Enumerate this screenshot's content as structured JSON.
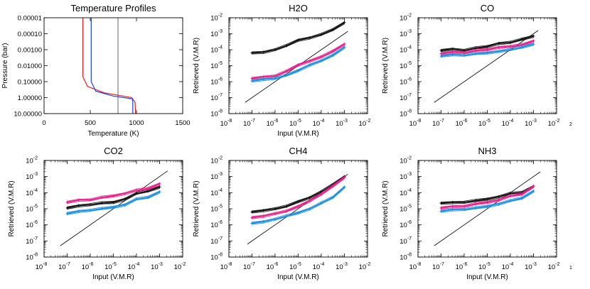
{
  "chart_data": [
    {
      "type": "line",
      "title": "Temperature Profiles",
      "xlabel": "Temperature (K)",
      "ylabel": "Pressure (bar)",
      "xlim": [
        0,
        1500
      ],
      "ylim": [
        10,
        1e-05
      ],
      "yscale": "log",
      "x_ticks": [
        "0",
        "500",
        "1000",
        "1500"
      ],
      "y_ticks": [
        "0.00001",
        "0.00010",
        "0.00100",
        "0.01000",
        "0.10000",
        "1.00000",
        "10.00000"
      ],
      "series": [
        {
          "name": "gray",
          "color": "#808080",
          "points": [
            [
              800,
              1e-05
            ],
            [
              800,
              10
            ]
          ]
        },
        {
          "name": "red",
          "color": "#e02020",
          "points": [
            [
              420,
              1e-05
            ],
            [
              420,
              0.05
            ],
            [
              470,
              0.2
            ],
            [
              650,
              0.5
            ],
            [
              950,
              1.0
            ],
            [
              985,
              2
            ],
            [
              990,
              10
            ]
          ]
        },
        {
          "name": "blue",
          "color": "#2040e0",
          "points": [
            [
              510,
              1e-05
            ],
            [
              510,
              0.1
            ],
            [
              560,
              0.4
            ],
            [
              750,
              0.8
            ],
            [
              955,
              1.2
            ],
            [
              960,
              2
            ],
            [
              960,
              10
            ]
          ]
        }
      ]
    },
    {
      "type": "line",
      "title": "H2O",
      "xlabel": "Input (V.M.R)",
      "ylabel": "Retrieved (V.M.R)",
      "xscale": "log",
      "yscale": "log",
      "xlim": [
        -8,
        -2
      ],
      "ylim": [
        -8,
        -2
      ],
      "tick_exponents": [
        -8,
        -7,
        -6,
        -5,
        -4,
        -3,
        -2
      ],
      "x": [
        -7,
        -6.5,
        -6,
        -5.5,
        -5,
        -4.5,
        -4,
        -3.5,
        -3
      ],
      "series": [
        {
          "name": "black",
          "color": "#111111",
          "y": [
            -4.2,
            -4.15,
            -4.0,
            -3.75,
            -3.4,
            -3.25,
            -3.05,
            -2.75,
            -2.3
          ]
        },
        {
          "name": "magenta",
          "color": "#e8208a",
          "y": [
            -5.8,
            -5.7,
            -5.65,
            -5.35,
            -4.95,
            -4.7,
            -4.45,
            -4.1,
            -3.65
          ]
        },
        {
          "name": "blue",
          "color": "#1e8fe0",
          "y": [
            -5.95,
            -5.85,
            -5.8,
            -5.6,
            -5.3,
            -4.95,
            -4.7,
            -4.35,
            -3.85
          ]
        }
      ],
      "reference_line": {
        "x": [
          -7.3,
          -2.85
        ],
        "y": [
          -7.3,
          -2.85
        ]
      }
    },
    {
      "type": "line",
      "title": "CO",
      "xlabel": "",
      "ylabel": "Retrieved (V.M.R)",
      "xscale": "log",
      "yscale": "log",
      "xlim": [
        -8,
        -2
      ],
      "ylim": [
        -8,
        -2
      ],
      "tick_exponents": [
        -8,
        -7,
        -6,
        -5,
        -4,
        -3,
        -2
      ],
      "x": [
        -7,
        -6.5,
        -6,
        -5.5,
        -5,
        -4.5,
        -4,
        -3.5,
        -3
      ],
      "series": [
        {
          "name": "black",
          "color": "#111111",
          "y": [
            -4.05,
            -3.95,
            -4.05,
            -3.9,
            -3.8,
            -3.6,
            -3.55,
            -3.35,
            -3.15
          ]
        },
        {
          "name": "magenta",
          "color": "#e8208a",
          "y": [
            -4.25,
            -4.15,
            -4.2,
            -4.05,
            -4.0,
            -3.85,
            -3.8,
            -3.7,
            -3.45
          ]
        },
        {
          "name": "blue",
          "color": "#1e8fe0",
          "y": [
            -4.4,
            -4.3,
            -4.35,
            -4.25,
            -4.2,
            -4.1,
            -4.0,
            -3.85,
            -3.65
          ]
        }
      ],
      "reference_line": {
        "x": [
          -7.3,
          -2.8
        ],
        "y": [
          -7.3,
          -2.8
        ]
      },
      "annotation": "2"
    },
    {
      "type": "line",
      "title": "CO2",
      "xlabel": "Input (V.M.R)",
      "ylabel": "Retrieved (V.M.R)",
      "xscale": "log",
      "yscale": "log",
      "xlim": [
        -8,
        -2
      ],
      "ylim": [
        -8,
        -2
      ],
      "tick_exponents": [
        -8,
        -7,
        -6,
        -5,
        -4,
        -3,
        -2
      ],
      "x": [
        -7,
        -6.5,
        -6,
        -5.5,
        -5,
        -4.5,
        -4,
        -3.5,
        -3
      ],
      "series": [
        {
          "name": "black",
          "color": "#111111",
          "y": [
            -4.95,
            -4.8,
            -4.75,
            -4.65,
            -4.6,
            -4.4,
            -4.05,
            -3.9,
            -3.65
          ]
        },
        {
          "name": "magenta",
          "color": "#e8208a",
          "y": [
            -4.6,
            -4.45,
            -4.45,
            -4.3,
            -4.2,
            -4.05,
            -3.85,
            -3.75,
            -3.45
          ]
        },
        {
          "name": "blue",
          "color": "#1e8fe0",
          "y": [
            -5.3,
            -5.15,
            -5.1,
            -5.0,
            -4.9,
            -4.75,
            -4.4,
            -4.3,
            -3.95
          ]
        }
      ],
      "reference_line": {
        "x": [
          -7.3,
          -2.65
        ],
        "y": [
          -7.3,
          -2.65
        ]
      }
    },
    {
      "type": "line",
      "title": "CH4",
      "xlabel": "Input (V.M.R)",
      "ylabel": "Retrieved (V.M.R)",
      "xscale": "log",
      "yscale": "log",
      "xlim": [
        -8,
        -2
      ],
      "ylim": [
        -8,
        -2
      ],
      "tick_exponents": [
        -8,
        -7,
        -6,
        -5,
        -4,
        -3,
        -2
      ],
      "x": [
        -7,
        -6.5,
        -6,
        -5.5,
        -5,
        -4.5,
        -4,
        -3.5,
        -3
      ],
      "series": [
        {
          "name": "black",
          "color": "#111111",
          "y": [
            -5.2,
            -5.1,
            -5.0,
            -4.85,
            -4.55,
            -4.3,
            -3.95,
            -3.5,
            -3.0
          ]
        },
        {
          "name": "magenta",
          "color": "#e8208a",
          "y": [
            -5.55,
            -5.45,
            -5.3,
            -5.15,
            -4.85,
            -4.5,
            -4.1,
            -3.6,
            -3.05
          ]
        },
        {
          "name": "blue",
          "color": "#1e8fe0",
          "y": [
            -5.9,
            -5.8,
            -5.65,
            -5.45,
            -5.25,
            -5.0,
            -4.65,
            -4.3,
            -3.65
          ]
        }
      ],
      "reference_line": {
        "x": [
          -7.2,
          -2.85
        ],
        "y": [
          -7.2,
          -2.85
        ]
      }
    },
    {
      "type": "line",
      "title": "NH3",
      "xlabel": "Input (V.M.R)",
      "ylabel": "Retrieved (V.M.R)",
      "xscale": "log",
      "yscale": "log",
      "xlim": [
        -8,
        -2
      ],
      "ylim": [
        -8,
        -2
      ],
      "tick_exponents": [
        -8,
        -7,
        -6,
        -5,
        -4,
        -3,
        -2
      ],
      "x": [
        -7,
        -6.5,
        -6,
        -5.5,
        -5,
        -4.5,
        -4,
        -3.5,
        -3
      ],
      "series": [
        {
          "name": "black",
          "color": "#111111",
          "y": [
            -4.65,
            -4.6,
            -4.6,
            -4.5,
            -4.4,
            -4.25,
            -4.05,
            -4.0,
            -3.6
          ]
        },
        {
          "name": "magenta",
          "color": "#e8208a",
          "y": [
            -4.95,
            -4.85,
            -4.85,
            -4.7,
            -4.6,
            -4.45,
            -4.2,
            -4.1,
            -3.6
          ]
        },
        {
          "name": "blue",
          "color": "#1e8fe0",
          "y": [
            -5.15,
            -5.05,
            -5.05,
            -4.95,
            -4.85,
            -4.7,
            -4.5,
            -4.35,
            -3.9
          ]
        }
      ],
      "reference_line": {
        "x": [
          -7.3,
          -2.7
        ],
        "y": [
          -7.3,
          -2.7
        ]
      },
      "annotation": "1"
    }
  ]
}
